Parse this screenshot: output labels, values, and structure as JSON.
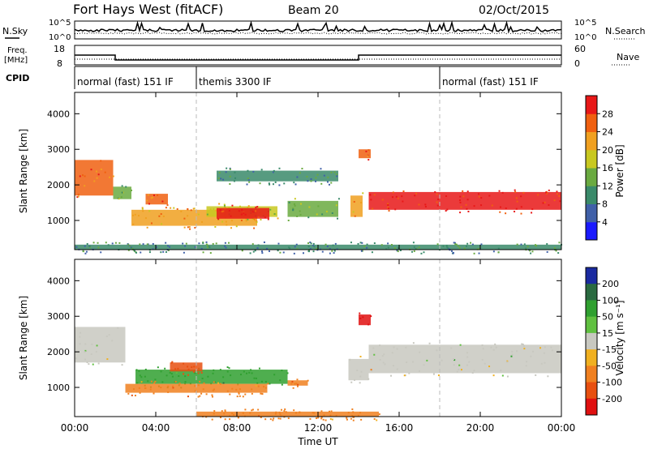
{
  "header": {
    "station": "Fort Hays West (fitACF)",
    "beam": "Beam 20",
    "date": "02/Oct/2015"
  },
  "top_panels": {
    "nsky_label": "N.Sky",
    "nsearch_label": "N.Search",
    "freq_label_1": "Freq.",
    "freq_label_2": "[MHz]",
    "nave_label": "Nave",
    "cpid_label": "CPID",
    "noise_ticks_left": [
      "10^5",
      "10^0"
    ],
    "noise_ticks_right": [
      "10^5",
      "10^0"
    ],
    "freq_ticks": [
      "18",
      "8"
    ],
    "nave_ticks": [
      "60",
      "0"
    ]
  },
  "cpid": {
    "segments": [
      {
        "label": "normal (fast) 151 IF",
        "start_hr": 0,
        "end_hr": 6
      },
      {
        "label": "themis 3300 IF",
        "start_hr": 6,
        "end_hr": 18
      },
      {
        "label": "normal (fast) 151 IF",
        "start_hr": 18,
        "end_hr": 24
      }
    ]
  },
  "time_axis": {
    "label": "Time UT",
    "ticks": [
      "00:00",
      "04:00",
      "08:00",
      "12:00",
      "16:00",
      "20:00",
      "00:00"
    ]
  },
  "range_axis": {
    "label": "Slant Range [km]",
    "ticks": [
      "1000",
      "2000",
      "3000",
      "4000"
    ]
  },
  "power_colorbar": {
    "label": "Power [dB]",
    "ticks": [
      "4",
      "8",
      "12",
      "16",
      "20",
      "24",
      "28"
    ],
    "colors": [
      "#1a1aff",
      "#4060a8",
      "#3a8a6a",
      "#6aaa40",
      "#c8c820",
      "#f0a020",
      "#f06010",
      "#e81818"
    ]
  },
  "velocity_colorbar": {
    "label": "Velocity [m s⁻¹]",
    "ticks": [
      "200",
      "100",
      "50",
      "15",
      "-15",
      "-50",
      "-100",
      "-200"
    ],
    "colors": [
      "#1a2aa0",
      "#2a6a40",
      "#30a030",
      "#60c040",
      "#c8c8c0",
      "#f0b020",
      "#f08020",
      "#e85010",
      "#e01010"
    ]
  },
  "chart_data": {
    "type": "heatmap",
    "title": "Fort Hays West (fitACF)  Beam 20  02/Oct/2015",
    "xlabel": "Time UT",
    "ylabel": "Slant Range [km]",
    "xlim_hours": [
      0,
      24
    ],
    "ylim_km": [
      180,
      4600
    ],
    "frequency_mhz": [
      {
        "start_hr": 0,
        "end_hr": 2,
        "value": 13
      },
      {
        "start_hr": 2,
        "end_hr": 14,
        "value": 10
      },
      {
        "start_hr": 14,
        "end_hr": 24,
        "value": 13
      }
    ],
    "power_features": [
      {
        "t0": 0.0,
        "t1": 1.9,
        "r0": 1700,
        "r1": 2700,
        "power_db": 24
      },
      {
        "t0": 1.9,
        "t1": 2.8,
        "r0": 1600,
        "r1": 1950,
        "power_db": 12
      },
      {
        "t0": 2.8,
        "t1": 9.0,
        "r0": 850,
        "r1": 1300,
        "power_db": 20
      },
      {
        "t0": 3.5,
        "t1": 4.6,
        "r0": 1450,
        "r1": 1750,
        "power_db": 24
      },
      {
        "t0": 6.5,
        "t1": 10.0,
        "r0": 1100,
        "r1": 1400,
        "power_db": 16
      },
      {
        "t0": 7.0,
        "t1": 9.6,
        "r0": 1050,
        "r1": 1350,
        "power_db": 28
      },
      {
        "t0": 10.5,
        "t1": 13.0,
        "r0": 1100,
        "r1": 1550,
        "power_db": 12
      },
      {
        "t0": 13.6,
        "t1": 14.2,
        "r0": 1100,
        "r1": 1700,
        "power_db": 20
      },
      {
        "t0": 14.0,
        "t1": 14.6,
        "r0": 2750,
        "r1": 3000,
        "power_db": 24
      },
      {
        "t0": 14.5,
        "t1": 24.0,
        "r0": 1300,
        "r1": 1800,
        "power_db": 28
      },
      {
        "t0": 7.0,
        "t1": 13.0,
        "r0": 2100,
        "r1": 2400,
        "power_db": 8
      },
      {
        "t0": 0.0,
        "t1": 24.0,
        "r0": 180,
        "r1": 320,
        "power_db": 8
      }
    ],
    "velocity_features": [
      {
        "t0": 0.0,
        "t1": 2.5,
        "r0": 1700,
        "r1": 2700,
        "velocity_ms": 0
      },
      {
        "t0": 3.0,
        "t1": 10.5,
        "r0": 1100,
        "r1": 1500,
        "velocity_ms": 50
      },
      {
        "t0": 2.5,
        "t1": 9.5,
        "r0": 850,
        "r1": 1100,
        "velocity_ms": -50
      },
      {
        "t0": 4.7,
        "t1": 6.3,
        "r0": 1450,
        "r1": 1700,
        "velocity_ms": -100
      },
      {
        "t0": 10.5,
        "t1": 11.5,
        "r0": 1050,
        "r1": 1200,
        "velocity_ms": -50
      },
      {
        "t0": 13.5,
        "t1": 14.5,
        "r0": 1200,
        "r1": 1800,
        "velocity_ms": 0
      },
      {
        "t0": 14.0,
        "t1": 14.6,
        "r0": 2750,
        "r1": 3050,
        "velocity_ms": -200
      },
      {
        "t0": 14.5,
        "t1": 24.0,
        "r0": 1400,
        "r1": 2200,
        "velocity_ms": 0
      },
      {
        "t0": 6.0,
        "t1": 15.0,
        "r0": 180,
        "r1": 320,
        "velocity_ms": -50
      }
    ]
  }
}
